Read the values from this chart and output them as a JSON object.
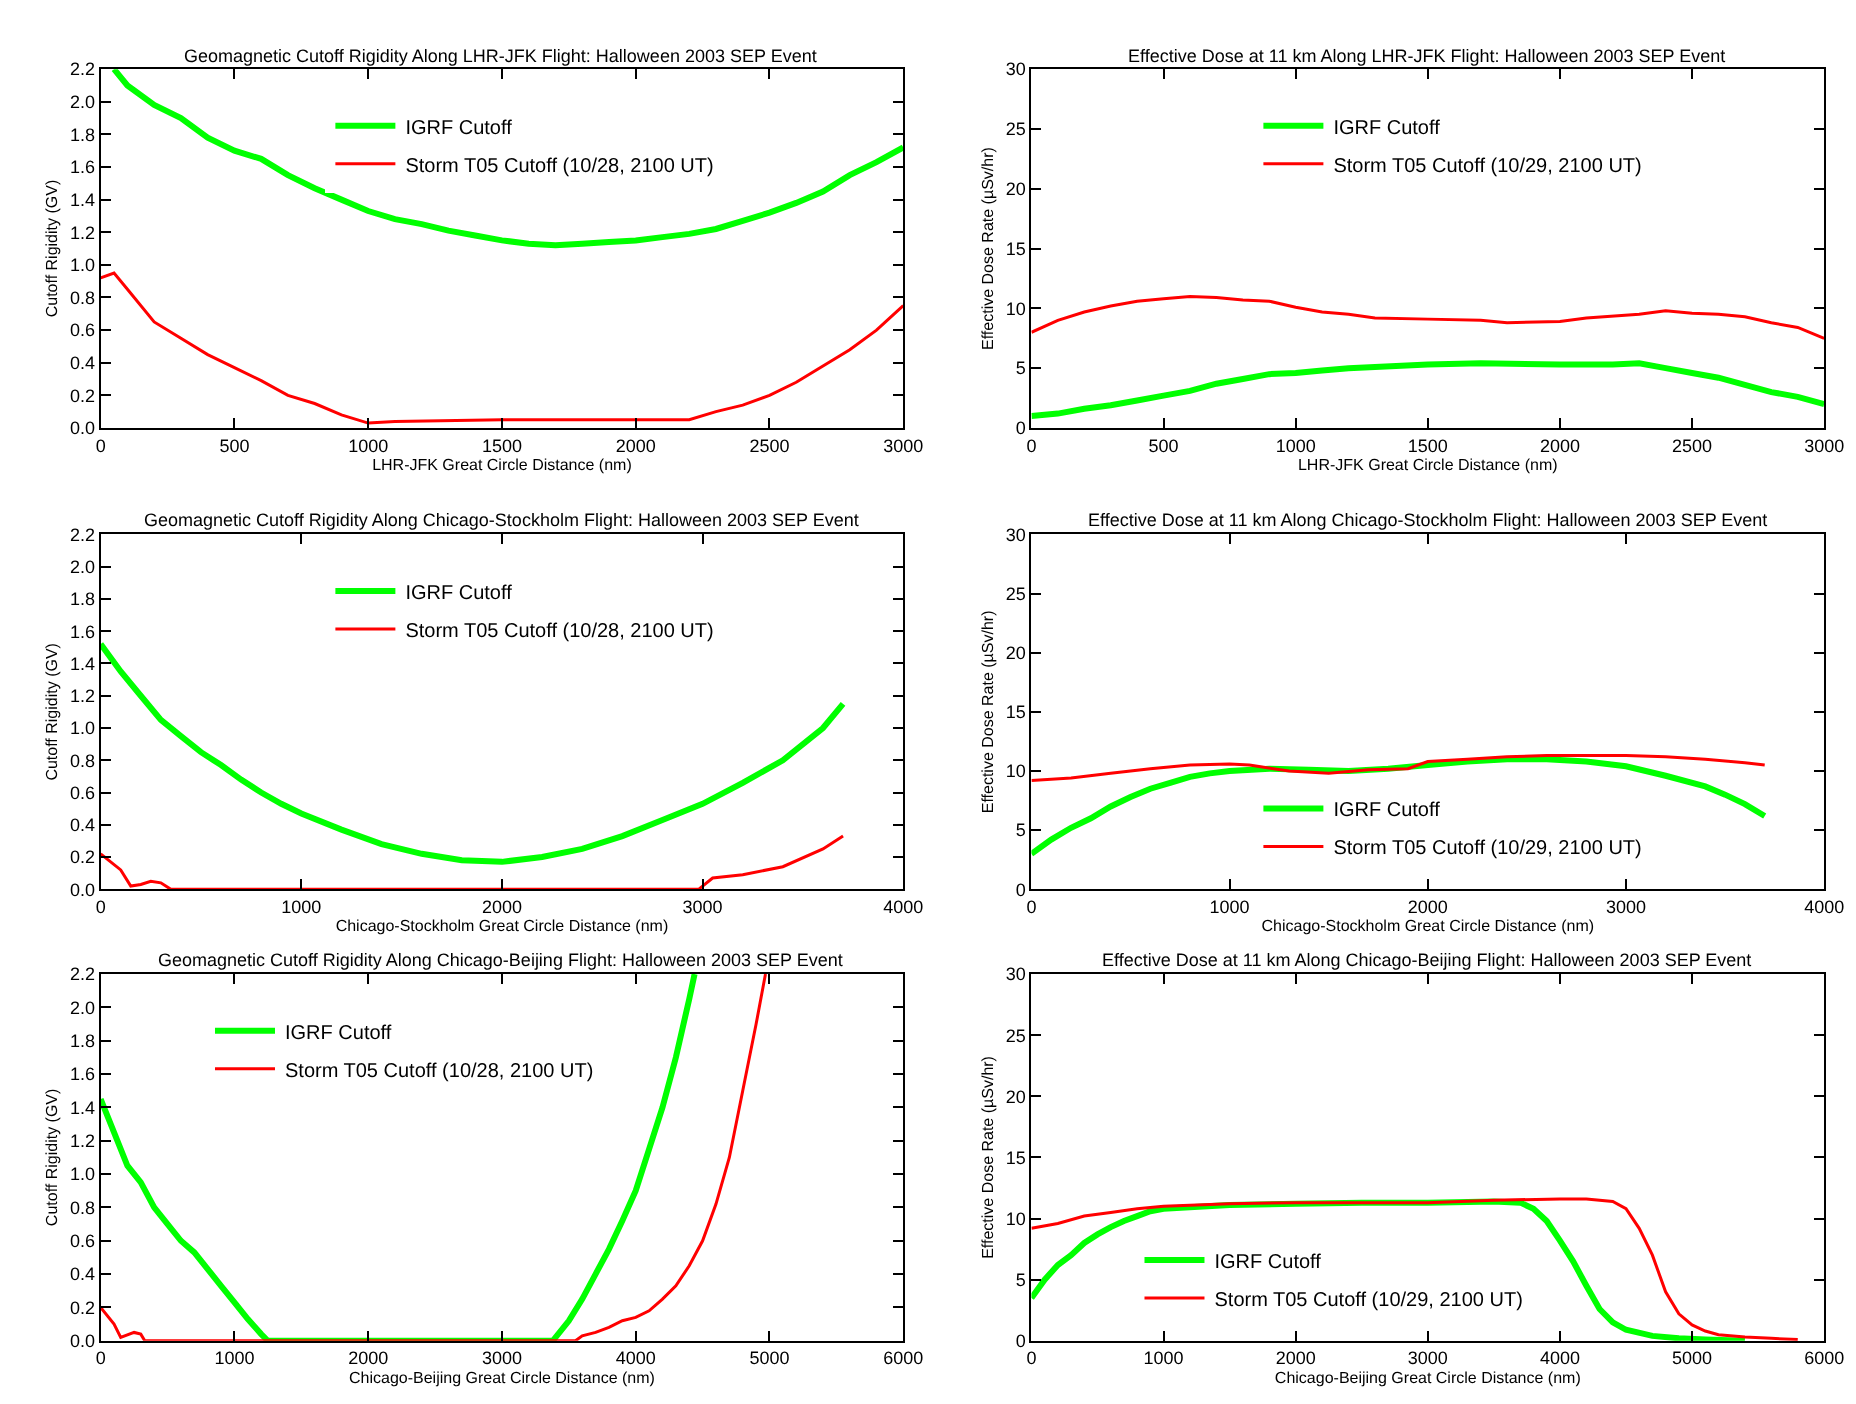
{
  "chart_data": [
    {
      "type": "line",
      "title": "Geomagnetic Cutoff Rigidity Along LHR-JFK Flight: Halloween 2003 SEP Event",
      "xlabel": "LHR-JFK Great Circle Distance (nm)",
      "ylabel": "Cutoff Rigidity (GV)",
      "xlim": [
        0,
        3000
      ],
      "xticks": [
        0,
        500,
        1000,
        1500,
        2000,
        2500,
        3000
      ],
      "ylim": [
        0,
        2.2
      ],
      "yticks": [
        {
          "value": 0,
          "label": "0.0"
        },
        0.2,
        0.4,
        0.6,
        0.8,
        {
          "value": 1,
          "label": "1.0"
        },
        1.2,
        1.4,
        1.6,
        1.8,
        {
          "value": 2,
          "label": "2.0"
        },
        2.2
      ],
      "legend": "top",
      "series": [
        {
          "name": "IGRF Cutoff",
          "color": "#00ff00",
          "x": [
            50,
            100,
            200,
            300,
            400,
            500,
            600,
            700,
            800,
            900,
            1000,
            1100,
            1200,
            1300,
            1400,
            1500,
            1600,
            1700,
            1800,
            1900,
            2000,
            2100,
            2200,
            2300,
            2400,
            2500,
            2600,
            2700,
            2800,
            2900,
            3000
          ],
          "values": [
            2.2,
            2.1,
            1.98,
            1.9,
            1.78,
            1.7,
            1.65,
            1.55,
            1.47,
            1.4,
            1.33,
            1.28,
            1.25,
            1.21,
            1.18,
            1.15,
            1.13,
            1.12,
            1.13,
            1.14,
            1.15,
            1.17,
            1.19,
            1.22,
            1.27,
            1.32,
            1.38,
            1.45,
            1.55,
            1.63,
            1.72
          ]
        },
        {
          "name": "Storm T05 Cutoff (10/28, 2100 UT)",
          "color": "#ff0000",
          "x": [
            0,
            50,
            100,
            200,
            300,
            400,
            500,
            600,
            700,
            800,
            900,
            1000,
            1100,
            1500,
            2000,
            2200,
            2300,
            2400,
            2500,
            2600,
            2700,
            2800,
            2900,
            3000
          ],
          "values": [
            0.92,
            0.95,
            0.85,
            0.65,
            0.55,
            0.45,
            0.37,
            0.29,
            0.2,
            0.15,
            0.08,
            0.03,
            0.04,
            0.05,
            0.05,
            0.05,
            0.1,
            0.14,
            0.2,
            0.28,
            0.38,
            0.48,
            0.6,
            0.75
          ]
        }
      ]
    },
    {
      "type": "line",
      "title": "Effective Dose at 11 km Along LHR-JFK Flight: Halloween 2003 SEP Event",
      "xlabel": "LHR-JFK Great Circle Distance (nm)",
      "ylabel": "Effective Dose Rate (µSv/hr)",
      "xlim": [
        0,
        3000
      ],
      "xticks": [
        0,
        500,
        1000,
        1500,
        2000,
        2500,
        3000
      ],
      "ylim": [
        0,
        30
      ],
      "yticks": [
        0,
        5,
        10,
        15,
        20,
        25,
        30
      ],
      "legend": "top",
      "series": [
        {
          "name": "IGRF Cutoff",
          "color": "#00ff00",
          "x": [
            0,
            100,
            200,
            300,
            400,
            500,
            600,
            700,
            800,
            900,
            1000,
            1100,
            1200,
            1300,
            1500,
            1700,
            2000,
            2200,
            2300,
            2400,
            2500,
            2600,
            2700,
            2800,
            2900,
            3000
          ],
          "values": [
            1,
            1.2,
            1.6,
            1.9,
            2.3,
            2.7,
            3.1,
            3.7,
            4.1,
            4.5,
            4.6,
            4.8,
            5,
            5.1,
            5.3,
            5.4,
            5.3,
            5.3,
            5.4,
            5,
            4.6,
            4.2,
            3.6,
            3,
            2.6,
            2
          ]
        },
        {
          "name": "Storm T05 Cutoff (10/29, 2100 UT)",
          "color": "#ff0000",
          "x": [
            0,
            100,
            200,
            300,
            400,
            500,
            600,
            700,
            800,
            900,
            1000,
            1100,
            1200,
            1300,
            1500,
            1700,
            1800,
            2000,
            2100,
            2300,
            2400,
            2500,
            2600,
            2700,
            2800,
            2900,
            3000
          ],
          "values": [
            8,
            9,
            9.7,
            10.2,
            10.6,
            10.8,
            11,
            10.9,
            10.7,
            10.6,
            10.1,
            9.7,
            9.5,
            9.2,
            9.1,
            9,
            8.8,
            8.9,
            9.2,
            9.5,
            9.8,
            9.6,
            9.5,
            9.3,
            8.8,
            8.4,
            7.5
          ]
        }
      ]
    },
    {
      "type": "line",
      "title": "Geomagnetic Cutoff Rigidity Along Chicago-Stockholm Flight: Halloween 2003 SEP Event",
      "xlabel": "Chicago-Stockholm Great Circle Distance (nm)",
      "ylabel": "Cutoff Rigidity (GV)",
      "xlim": [
        0,
        4000
      ],
      "xticks": [
        0,
        1000,
        2000,
        3000,
        4000
      ],
      "ylim": [
        0,
        2.2
      ],
      "yticks": [
        {
          "value": 0,
          "label": "0.0"
        },
        0.2,
        0.4,
        0.6,
        0.8,
        {
          "value": 1,
          "label": "1.0"
        },
        1.2,
        1.4,
        1.6,
        1.8,
        {
          "value": 2,
          "label": "2.0"
        },
        2.2
      ],
      "legend": "top",
      "series": [
        {
          "name": "IGRF Cutoff",
          "color": "#00ff00",
          "x": [
            0,
            100,
            200,
            300,
            400,
            500,
            600,
            700,
            800,
            900,
            1000,
            1200,
            1400,
            1600,
            1800,
            2000,
            2200,
            2400,
            2600,
            2800,
            3000,
            3200,
            3400,
            3600,
            3700
          ],
          "values": [
            1.52,
            1.35,
            1.2,
            1.05,
            0.95,
            0.85,
            0.77,
            0.68,
            0.6,
            0.53,
            0.47,
            0.37,
            0.28,
            0.22,
            0.18,
            0.17,
            0.2,
            0.25,
            0.33,
            0.43,
            0.53,
            0.66,
            0.8,
            1.0,
            1.15
          ]
        },
        {
          "name": "Storm T05 Cutoff (10/28, 2100 UT)",
          "color": "#ff0000",
          "x": [
            0,
            100,
            150,
            200,
            250,
            300,
            350,
            1000,
            2000,
            2980,
            3050,
            3200,
            3400,
            3600,
            3700
          ],
          "values": [
            0.22,
            0.12,
            0.02,
            0.03,
            0.05,
            0.04,
            0,
            0,
            0,
            0,
            0.07,
            0.09,
            0.14,
            0.25,
            0.33
          ]
        }
      ]
    },
    {
      "type": "line",
      "title": "Effective Dose at 11 km Along Chicago-Stockholm Flight: Halloween 2003 SEP Event",
      "xlabel": "Chicago-Stockholm Great Circle Distance (nm)",
      "ylabel": "Effective Dose Rate (µSv/hr)",
      "xlim": [
        0,
        4000
      ],
      "xticks": [
        0,
        1000,
        2000,
        3000,
        4000
      ],
      "ylim": [
        0,
        30
      ],
      "yticks": [
        0,
        5,
        10,
        15,
        20,
        25,
        30
      ],
      "legend": "bottom",
      "series": [
        {
          "name": "IGRF Cutoff",
          "color": "#00ff00",
          "x": [
            0,
            100,
            200,
            300,
            400,
            500,
            600,
            700,
            800,
            900,
            1000,
            1200,
            1400,
            1600,
            1800,
            2000,
            2200,
            2400,
            2600,
            2800,
            3000,
            3200,
            3400,
            3500,
            3600,
            3700
          ],
          "values": [
            3,
            4.2,
            5.2,
            6,
            7,
            7.8,
            8.5,
            9,
            9.5,
            9.8,
            10,
            10.2,
            10.1,
            10,
            10.2,
            10.5,
            10.8,
            11,
            11,
            10.8,
            10.4,
            9.6,
            8.7,
            8,
            7.2,
            6.2
          ]
        },
        {
          "name": "Storm T05 Cutoff (10/29, 2100 UT)",
          "color": "#ff0000",
          "x": [
            0,
            200,
            400,
            600,
            800,
            1000,
            1100,
            1300,
            1500,
            1700,
            1900,
            2000,
            2200,
            2400,
            2600,
            2800,
            3000,
            3200,
            3400,
            3600,
            3700
          ],
          "values": [
            9.2,
            9.4,
            9.8,
            10.2,
            10.5,
            10.6,
            10.5,
            10,
            9.8,
            10.1,
            10.2,
            10.8,
            11,
            11.2,
            11.3,
            11.3,
            11.3,
            11.2,
            11,
            10.7,
            10.5
          ]
        }
      ]
    },
    {
      "type": "line",
      "title": "Geomagnetic Cutoff Rigidity Along Chicago-Beijing Flight: Halloween 2003 SEP Event",
      "xlabel": "Chicago-Beijing Great Circle Distance (nm)",
      "ylabel": "Cutoff Rigidity (GV)",
      "xlim": [
        0,
        6000
      ],
      "xticks": [
        0,
        1000,
        2000,
        3000,
        4000,
        5000,
        6000
      ],
      "ylim": [
        0,
        2.2
      ],
      "yticks": [
        {
          "value": 0,
          "label": "0.0"
        },
        0.2,
        0.4,
        0.6,
        0.8,
        {
          "value": 1,
          "label": "1.0"
        },
        1.2,
        1.4,
        1.6,
        1.8,
        {
          "value": 2,
          "label": "2.0"
        },
        2.2
      ],
      "legend": "top",
      "series": [
        {
          "name": "IGRF Cutoff",
          "color": "#00ff00",
          "x": [
            0,
            100,
            200,
            300,
            400,
            500,
            600,
            700,
            800,
            900,
            1000,
            1100,
            1200,
            1250,
            2000,
            3000,
            3380,
            3500,
            3600,
            3700,
            3800,
            3900,
            4000,
            4100,
            4200,
            4300,
            4400,
            4440
          ],
          "values": [
            1.45,
            1.25,
            1.05,
            0.95,
            0.8,
            0.7,
            0.6,
            0.53,
            0.43,
            0.33,
            0.23,
            0.13,
            0.04,
            0,
            0,
            0,
            0,
            0.12,
            0.25,
            0.4,
            0.55,
            0.72,
            0.9,
            1.15,
            1.4,
            1.7,
            2.05,
            2.2
          ]
        },
        {
          "name": "Storm T05 Cutoff (10/28, 2100 UT)",
          "color": "#ff0000",
          "x": [
            0,
            100,
            150,
            250,
            300,
            330,
            1000,
            3550,
            3600,
            3700,
            3800,
            3900,
            4000,
            4100,
            4200,
            4300,
            4400,
            4500,
            4600,
            4700,
            4800,
            4900,
            4970
          ],
          "values": [
            0.2,
            0.1,
            0.02,
            0.05,
            0.04,
            0,
            0,
            0,
            0.03,
            0.05,
            0.08,
            0.12,
            0.14,
            0.18,
            0.25,
            0.33,
            0.45,
            0.6,
            0.82,
            1.1,
            1.5,
            1.9,
            2.2
          ]
        }
      ]
    },
    {
      "type": "line",
      "title": "Effective Dose at 11 km Along Chicago-Beijing Flight: Halloween 2003 SEP Event",
      "xlabel": "Chicago-Beijing Great Circle Distance (nm)",
      "ylabel": "Effective Dose Rate (µSv/hr)",
      "xlim": [
        0,
        6000
      ],
      "xticks": [
        0,
        1000,
        2000,
        3000,
        4000,
        5000,
        6000
      ],
      "ylim": [
        0,
        30
      ],
      "yticks": [
        0,
        5,
        10,
        15,
        20,
        25,
        30
      ],
      "legend": "bottom",
      "series": [
        {
          "name": "IGRF Cutoff",
          "color": "#00ff00",
          "x": [
            0,
            100,
            200,
            300,
            400,
            500,
            600,
            700,
            800,
            900,
            1000,
            1500,
            2000,
            2500,
            3000,
            3500,
            3700,
            3800,
            3900,
            4000,
            4100,
            4200,
            4300,
            4400,
            4500,
            4700,
            4900,
            5100,
            5400
          ],
          "values": [
            3.5,
            5,
            6.2,
            7,
            8,
            8.7,
            9.3,
            9.8,
            10.2,
            10.6,
            10.8,
            11.1,
            11.2,
            11.3,
            11.3,
            11.4,
            11.3,
            10.8,
            9.8,
            8.2,
            6.5,
            4.5,
            2.6,
            1.5,
            0.9,
            0.4,
            0.2,
            0.1,
            0
          ]
        },
        {
          "name": "Storm T05 Cutoff (10/29, 2100 UT)",
          "color": "#ff0000",
          "x": [
            0,
            200,
            400,
            600,
            800,
            1000,
            1500,
            2000,
            2500,
            3000,
            3500,
            4000,
            4200,
            4400,
            4500,
            4600,
            4700,
            4800,
            4900,
            5000,
            5100,
            5200,
            5400,
            5600,
            5800
          ],
          "values": [
            9.2,
            9.6,
            10.2,
            10.5,
            10.8,
            11,
            11.2,
            11.3,
            11.3,
            11.3,
            11.5,
            11.6,
            11.6,
            11.4,
            10.8,
            9.2,
            7,
            4,
            2.2,
            1.3,
            0.8,
            0.5,
            0.3,
            0.2,
            0.1
          ]
        }
      ]
    }
  ]
}
